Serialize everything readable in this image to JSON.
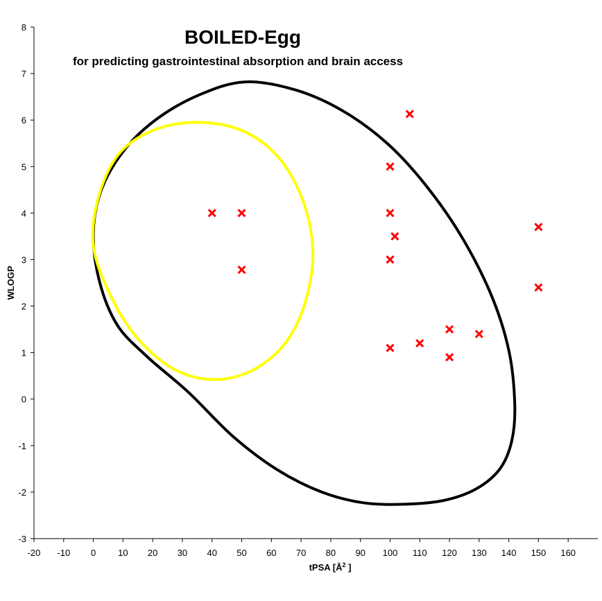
{
  "chart_data": {
    "type": "scatter",
    "title": "BOILED-Egg",
    "subtitle": "for predicting gastrointestinal absorption and brain access",
    "xlabel_main": "tPSA [Å",
    "xlabel_sup": "2",
    "xlabel_end": " ]",
    "ylabel": "WLOGP",
    "xlim": [
      -20,
      170
    ],
    "ylim": [
      -3,
      8
    ],
    "xticks": [
      -20,
      -10,
      0,
      10,
      20,
      30,
      40,
      50,
      60,
      70,
      80,
      90,
      100,
      110,
      120,
      130,
      140,
      150,
      160
    ],
    "yticks": [
      -3,
      -2,
      -1,
      0,
      1,
      2,
      3,
      4,
      5,
      6,
      7,
      8
    ],
    "grid": false,
    "marker": "x",
    "marker_color": "#ff0000",
    "points": [
      {
        "x": 40,
        "y": 4.0
      },
      {
        "x": 50,
        "y": 4.0
      },
      {
        "x": 50,
        "y": 2.78
      },
      {
        "x": 106.6,
        "y": 6.13
      },
      {
        "x": 100,
        "y": 5.0
      },
      {
        "x": 100,
        "y": 4.0
      },
      {
        "x": 101.6,
        "y": 3.5
      },
      {
        "x": 100,
        "y": 3.0
      },
      {
        "x": 100,
        "y": 1.1
      },
      {
        "x": 110,
        "y": 1.2
      },
      {
        "x": 120,
        "y": 1.5
      },
      {
        "x": 120,
        "y": 0.9
      },
      {
        "x": 130,
        "y": 1.4
      },
      {
        "x": 150,
        "y": 3.7
      },
      {
        "x": 150,
        "y": 2.4
      }
    ],
    "regions": [
      {
        "name": "white",
        "color": "#000000",
        "points": [
          [
            51,
            6.82
          ],
          [
            68,
            6.65
          ],
          [
            84,
            6.2
          ],
          [
            99,
            5.5
          ],
          [
            112,
            4.6
          ],
          [
            124,
            3.5
          ],
          [
            134,
            2.25
          ],
          [
            140,
            1.05
          ],
          [
            142,
            -0.1
          ],
          [
            141,
            -0.9
          ],
          [
            137,
            -1.5
          ],
          [
            129,
            -1.93
          ],
          [
            118,
            -2.18
          ],
          [
            105,
            -2.26
          ],
          [
            91,
            -2.23
          ],
          [
            77,
            -2.0
          ],
          [
            62,
            -1.52
          ],
          [
            47,
            -0.8
          ],
          [
            32,
            0.15
          ],
          [
            18,
            0.92
          ],
          [
            8,
            1.6
          ],
          [
            2,
            2.55
          ],
          [
            0,
            3.6
          ],
          [
            3,
            4.55
          ],
          [
            11,
            5.4
          ],
          [
            22,
            6.05
          ],
          [
            36,
            6.55
          ]
        ]
      },
      {
        "name": "yolk",
        "color": "#ffff00",
        "points": [
          [
            36,
            5.95
          ],
          [
            51,
            5.75
          ],
          [
            63,
            5.15
          ],
          [
            71,
            4.2
          ],
          [
            74,
            3.1
          ],
          [
            71,
            2.0
          ],
          [
            64,
            1.15
          ],
          [
            53,
            0.6
          ],
          [
            40,
            0.42
          ],
          [
            27,
            0.65
          ],
          [
            15,
            1.3
          ],
          [
            6,
            2.2
          ],
          [
            0,
            3.3
          ],
          [
            2,
            4.4
          ],
          [
            9,
            5.3
          ],
          [
            21,
            5.8
          ]
        ]
      }
    ]
  }
}
